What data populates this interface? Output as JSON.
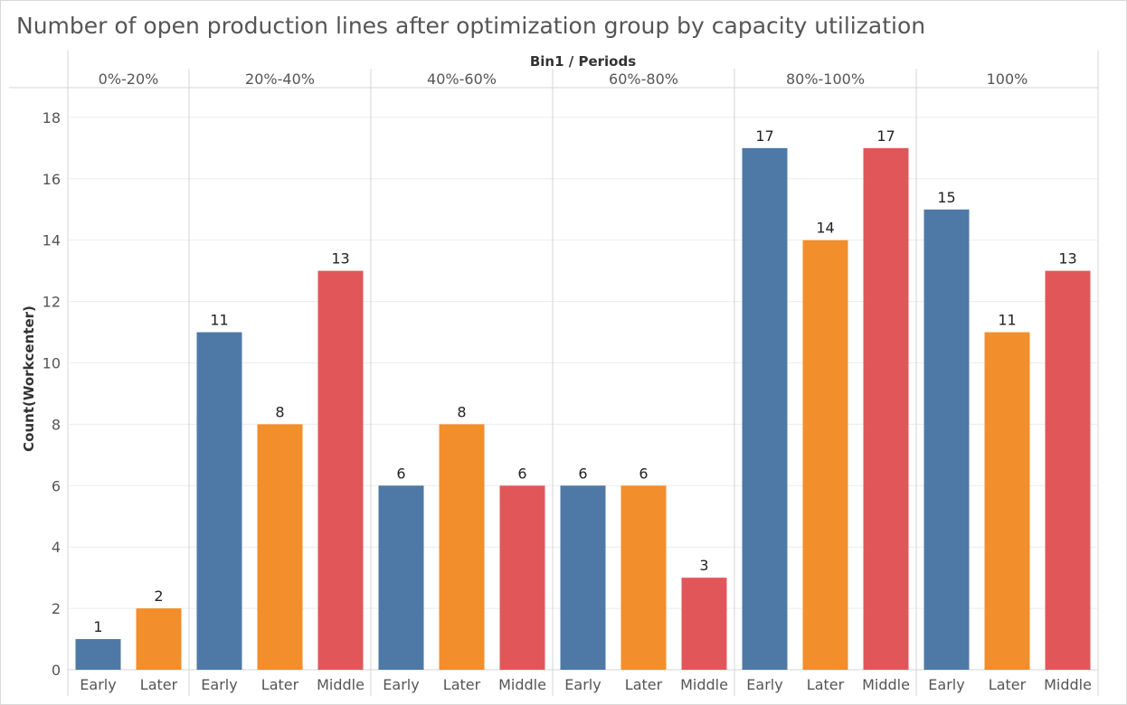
{
  "title": "Number of open production lines after optimization group by capacity utilization",
  "chart_data": {
    "type": "bar",
    "title": "Number of open production lines after optimization group by capacity utilization",
    "column_header": "Bin1 / Periods",
    "ylabel": "Count(Workcenter)",
    "ylim": [
      0,
      19
    ],
    "yticks": [
      0,
      2,
      4,
      6,
      8,
      10,
      12,
      14,
      16,
      18
    ],
    "grid": true,
    "legend": "none",
    "colors": {
      "Early": "#4e79a7",
      "Later": "#f28e2b",
      "Middle": "#e15759"
    },
    "groups": [
      {
        "name": "0%-20%",
        "bars": [
          {
            "period": "Early",
            "value": 1
          },
          {
            "period": "Later",
            "value": 2
          }
        ]
      },
      {
        "name": "20%-40%",
        "bars": [
          {
            "period": "Early",
            "value": 11
          },
          {
            "period": "Later",
            "value": 8
          },
          {
            "period": "Middle",
            "value": 13
          }
        ]
      },
      {
        "name": "40%-60%",
        "bars": [
          {
            "period": "Early",
            "value": 6
          },
          {
            "period": "Later",
            "value": 8
          },
          {
            "period": "Middle",
            "value": 6
          }
        ]
      },
      {
        "name": "60%-80%",
        "bars": [
          {
            "period": "Early",
            "value": 6
          },
          {
            "period": "Later",
            "value": 6
          },
          {
            "period": "Middle",
            "value": 3
          }
        ]
      },
      {
        "name": "80%-100%",
        "bars": [
          {
            "period": "Early",
            "value": 17
          },
          {
            "period": "Later",
            "value": 14
          },
          {
            "period": "Middle",
            "value": 17
          }
        ]
      },
      {
        "name": "100%",
        "bars": [
          {
            "period": "Early",
            "value": 15
          },
          {
            "period": "Later",
            "value": 11
          },
          {
            "period": "Middle",
            "value": 13
          }
        ]
      }
    ]
  }
}
